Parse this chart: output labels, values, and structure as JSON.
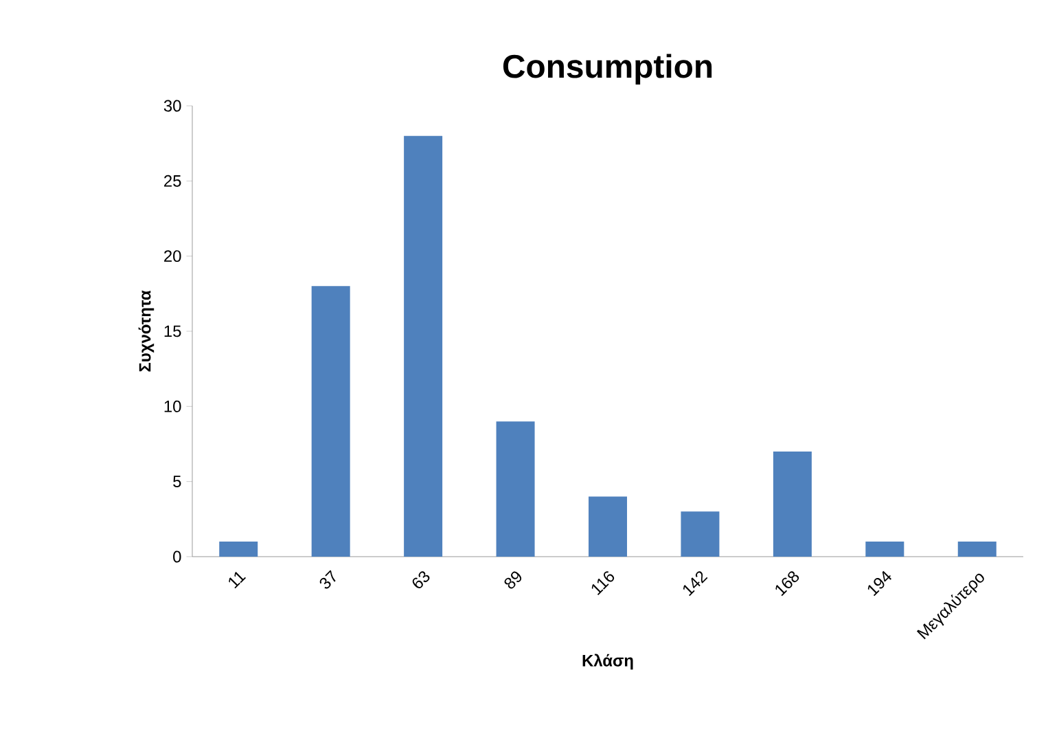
{
  "chart_data": {
    "type": "bar",
    "title": "Consumption",
    "xlabel": "Κλάση",
    "ylabel": "Συχνότητα",
    "categories": [
      "11",
      "37",
      "63",
      "89",
      "116",
      "142",
      "168",
      "194",
      "Μεγαλύτερο"
    ],
    "values": [
      1,
      18,
      28,
      9,
      4,
      3,
      7,
      1,
      1
    ],
    "color": "#4f81bd",
    "ylim": [
      0,
      30
    ],
    "yticks": [
      0,
      5,
      10,
      15,
      20,
      25,
      30
    ]
  }
}
